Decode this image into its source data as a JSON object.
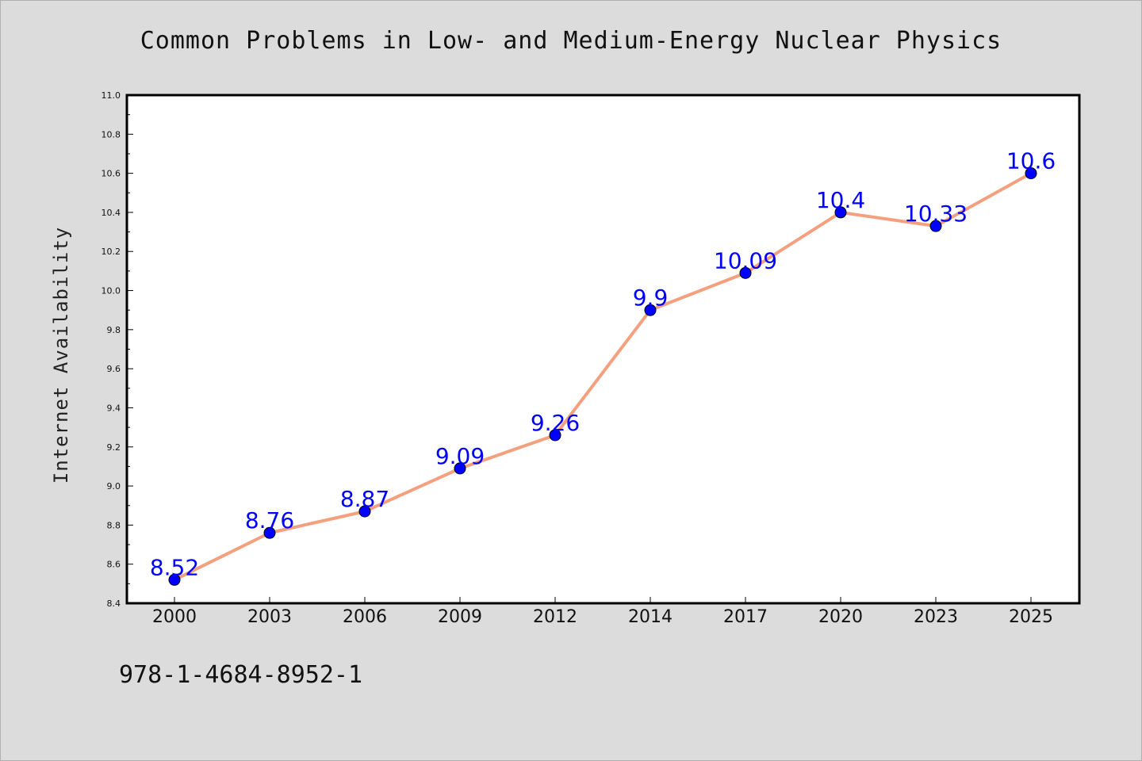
{
  "page": {
    "title": "Common Problems in Low- and Medium-Energy Nuclear Physics",
    "footer_id": "978-1-4684-8952-1"
  },
  "chart_data": {
    "type": "line",
    "title": "Common Problems in Low- and Medium-Energy Nuclear Physics",
    "xlabel": "",
    "ylabel": "Internet Availability",
    "categories": [
      "2000",
      "2003",
      "2006",
      "2009",
      "2012",
      "2014",
      "2017",
      "2020",
      "2023",
      "2025"
    ],
    "series": [
      {
        "values": [
          8.52,
          8.76,
          8.87,
          9.09,
          9.26,
          9.9,
          10.09,
          10.4,
          10.33,
          10.6
        ],
        "labels": [
          "8.52",
          "8.76",
          "8.87",
          "9.09",
          "9.26",
          "9.9",
          "10.09",
          "10.4",
          "10.33",
          "10.6"
        ]
      }
    ],
    "ylim": [
      8.4,
      11.0
    ],
    "yticks": [
      "8.4",
      "8.6",
      "8.8",
      "9.0",
      "9.2",
      "9.4",
      "9.6",
      "9.8",
      "10.0",
      "10.2",
      "10.4",
      "10.6",
      "10.8",
      "11.0"
    ],
    "grid": false,
    "colors": {
      "line": "#f4a07e",
      "marker": "#0000ff",
      "data_label": "#0000ff",
      "plot_background": "#ffffff",
      "page_background": "#dcdcdc"
    }
  }
}
